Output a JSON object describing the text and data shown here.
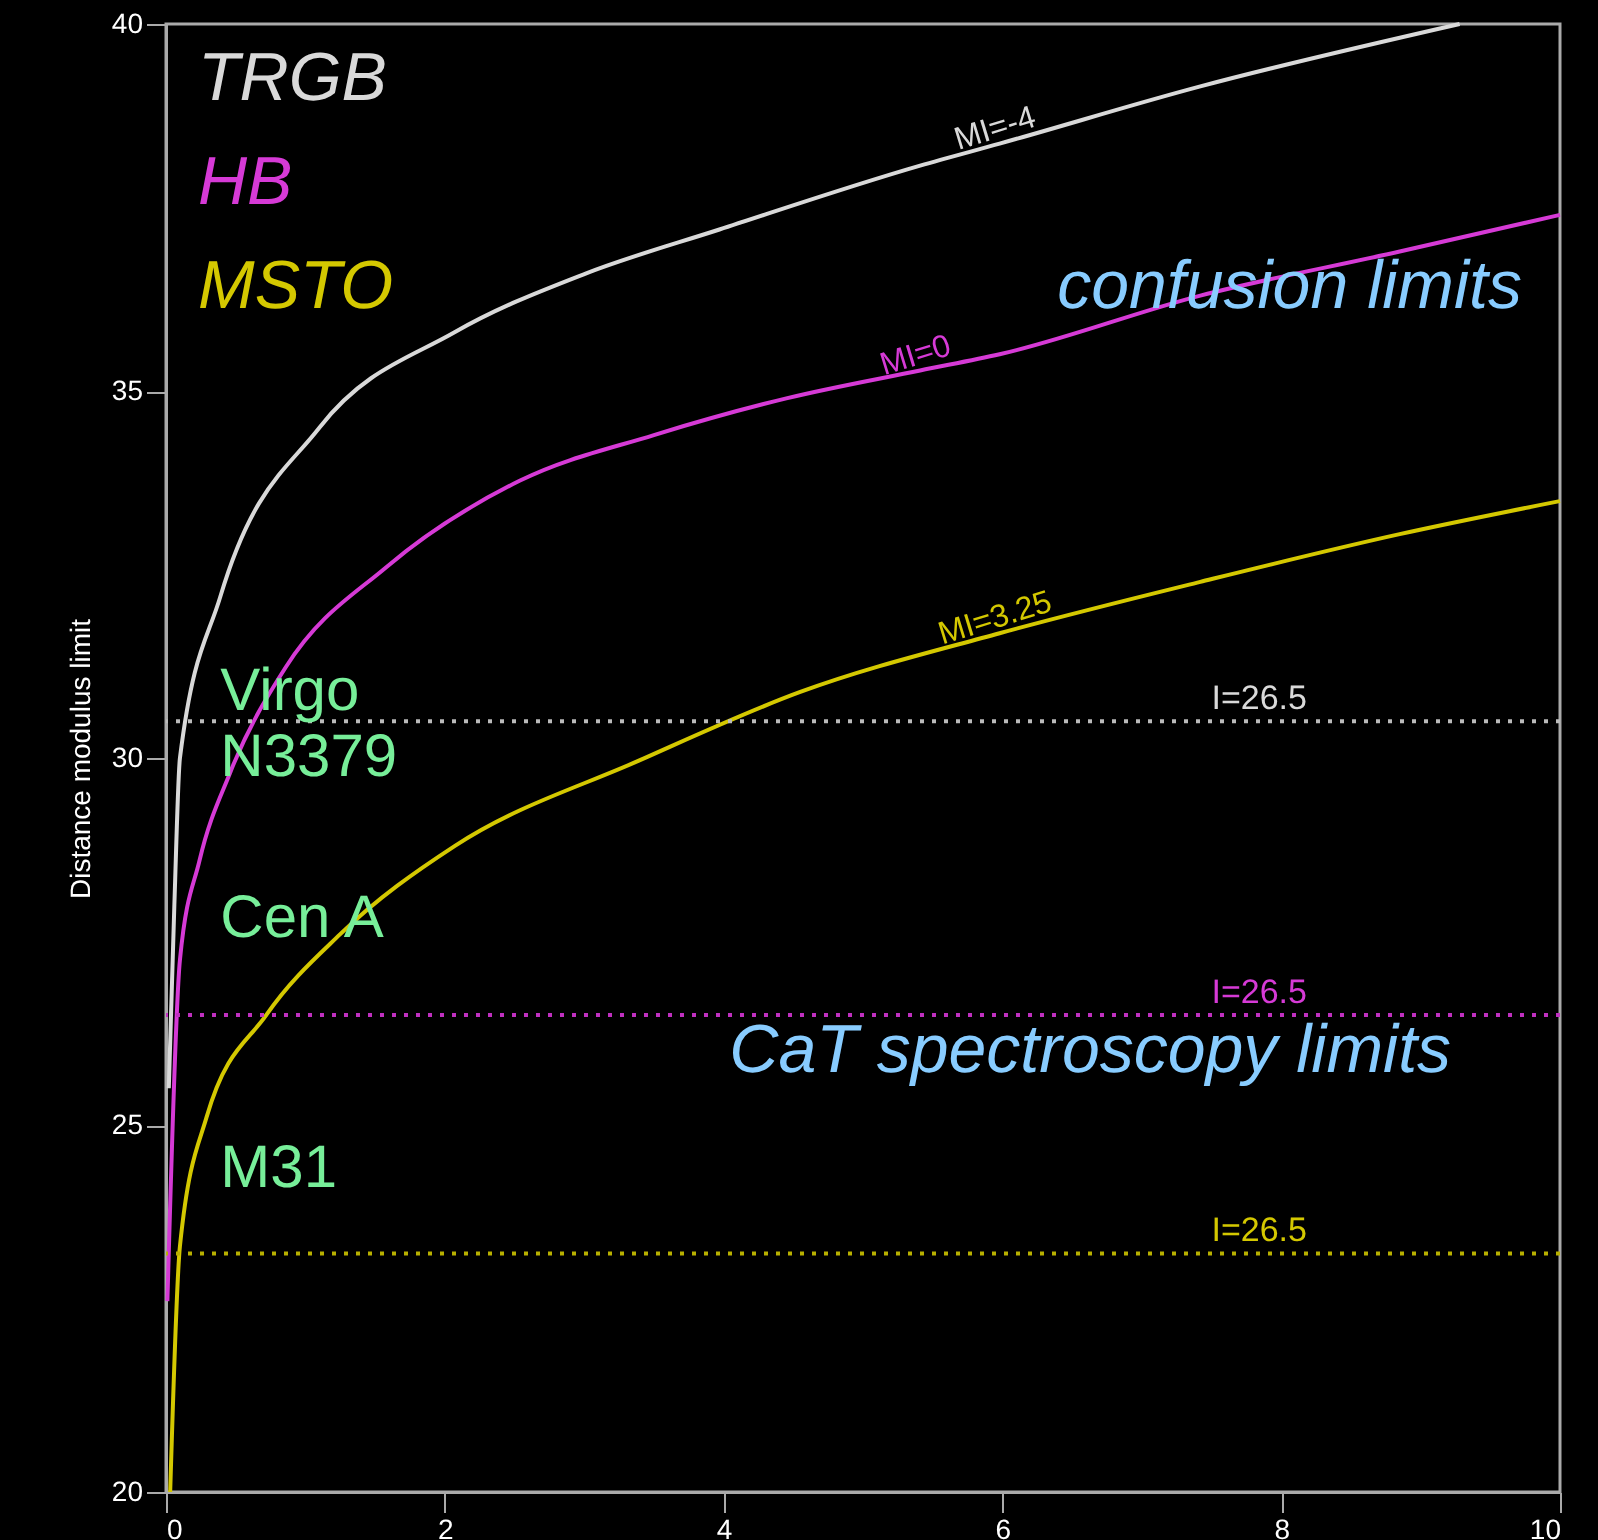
{
  "chart_data": {
    "type": "line",
    "ylabel": "Distance modulus limit",
    "xlim": [
      0,
      10
    ],
    "xticks": [
      0,
      2,
      4,
      6,
      8,
      10
    ],
    "ylim": [
      20,
      40
    ],
    "yticks": [
      20,
      25,
      30,
      35,
      40
    ],
    "grid": false,
    "legend": "top left",
    "line_style": "solid",
    "marker": "none",
    "series": [
      {
        "name": "TRGB",
        "color": "#d9d9d9",
        "x": [
          0.02,
          0.06,
          0.1,
          0.39,
          1.1,
          2.07,
          3.01,
          3.97,
          5.41,
          5.98,
          7.42,
          9.28
        ],
        "values": [
          25.5,
          28.0,
          30.0,
          32.2,
          34.5,
          35.8,
          36.6,
          37.2,
          38.07,
          38.37,
          39.15,
          40.0
        ]
      },
      {
        "name": "HB",
        "color": "#d63ad6",
        "x": [
          0.01,
          0.1,
          0.24,
          0.46,
          0.86,
          1.58,
          2.54,
          3.5,
          4.45,
          5.41,
          5.98,
          7.42,
          8.85,
          10
        ],
        "values": [
          22.6,
          27.25,
          28.6,
          29.8,
          31.24,
          32.6,
          33.78,
          34.4,
          34.9,
          35.28,
          35.5,
          36.3,
          36.9,
          37.4
        ]
      },
      {
        "name": "MSTO",
        "color": "#d4c800",
        "x": [
          0.03,
          0.1,
          0.29,
          0.72,
          1.25,
          2.07,
          3.4,
          4.55,
          5.98,
          7.42,
          8.85,
          10
        ],
        "values": [
          20.0,
          23.35,
          25.1,
          26.5,
          27.6,
          28.8,
          29.97,
          30.9,
          31.7,
          32.4,
          33.05,
          33.5
        ]
      }
    ],
    "ref_lines": [
      {
        "axis": "y",
        "value": 30.5,
        "color": "#bbbbbb",
        "line_style": "dotted"
      },
      {
        "axis": "y",
        "value": 26.5,
        "color": "#c030c0",
        "line_style": "dotted"
      },
      {
        "axis": "y",
        "value": 23.25,
        "color": "#b8b000",
        "line_style": "dotted"
      }
    ],
    "annotations": [
      {
        "text": "MI=-4",
        "x": 5.98,
        "y": 38.37
      },
      {
        "text": "MI=0",
        "x": 5.41,
        "y": 35.28
      },
      {
        "text": "MI=3.25",
        "x": 5.98,
        "y": 31.7
      },
      {
        "text": "I=26.5",
        "x": 7.5,
        "y": 30.5
      },
      {
        "text": "I=26.5",
        "x": 7.5,
        "y": 26.5
      },
      {
        "text": "I=26.5",
        "x": 7.5,
        "y": 23.25
      },
      "confusion limits",
      "CaT spectroscopy limits",
      "Virgo",
      "N3379",
      "Cen A",
      "M31"
    ]
  }
}
